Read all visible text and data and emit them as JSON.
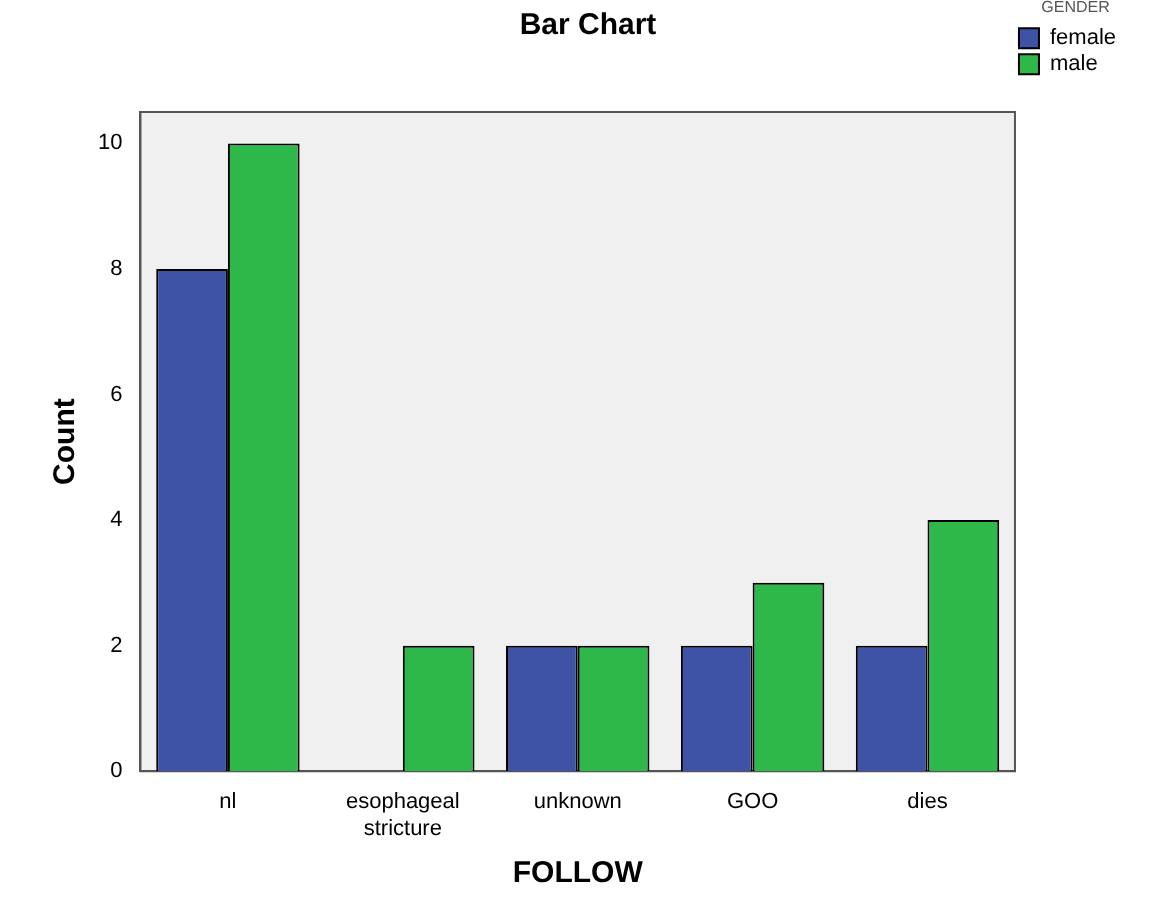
{
  "chart_data": {
    "type": "bar",
    "title": "Bar Chart",
    "xlabel": "FOLLOW",
    "ylabel": "Count",
    "legend_title": "GENDER",
    "legend": "top right",
    "categories": [
      "nl",
      "esophageal stricture",
      "unknown",
      "GOO",
      "dies"
    ],
    "series": [
      {
        "name": "female",
        "color": "#3e53a5",
        "values": [
          8,
          0,
          2,
          2,
          2
        ]
      },
      {
        "name": "male",
        "color": "#2eb84a",
        "values": [
          10,
          2,
          2,
          3,
          4
        ]
      }
    ],
    "ylim": [
      0,
      10.5
    ],
    "yticks": [
      0,
      2,
      4,
      6,
      8,
      10
    ],
    "grid": false
  }
}
